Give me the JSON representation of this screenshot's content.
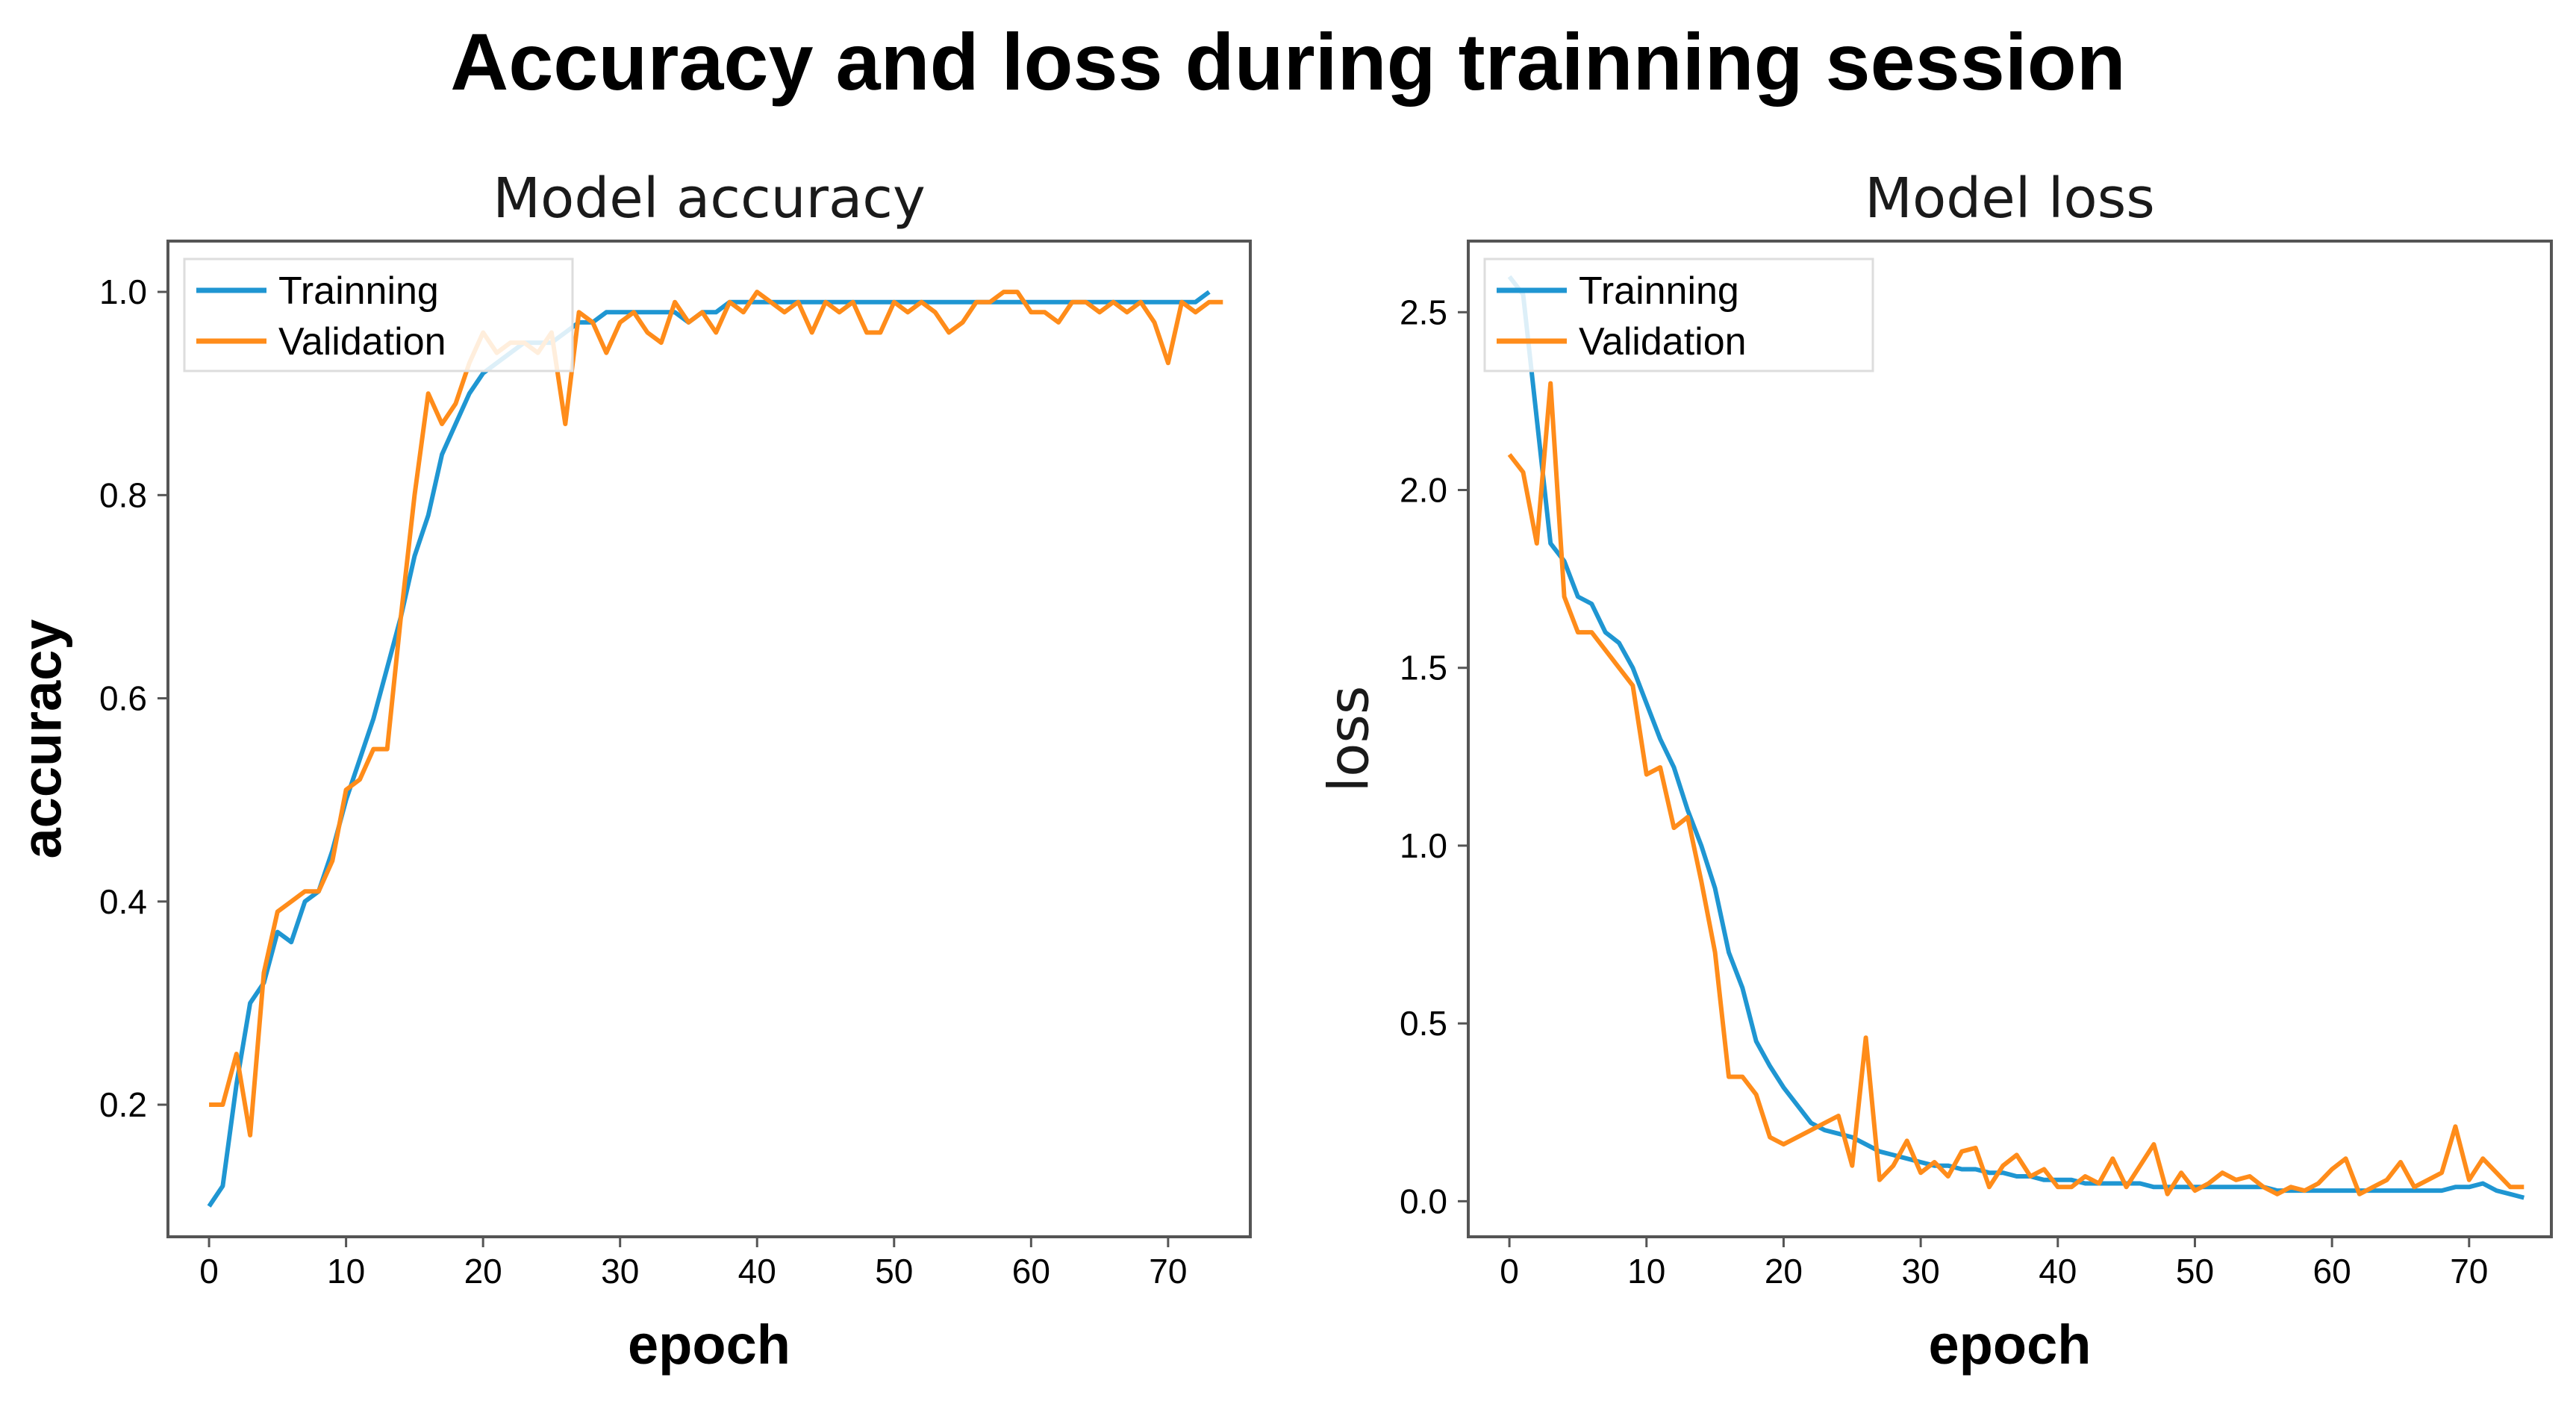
{
  "figure": {
    "title": "Accuracy and loss during trainning session"
  },
  "colors": {
    "training": "#1f96d2",
    "validation": "#ff8c1a",
    "frame": "#555555"
  },
  "chart_data": [
    {
      "type": "line",
      "title": "Model accuracy",
      "xlabel": "epoch",
      "ylabel": "accuracy",
      "xlim": [
        -3,
        76
      ],
      "ylim": [
        0.07,
        1.05
      ],
      "xticks": [
        0,
        10,
        20,
        30,
        40,
        50,
        60,
        70
      ],
      "yticks": [
        0.2,
        0.4,
        0.6,
        0.8,
        1.0
      ],
      "xtick_labels": [
        "0",
        "10",
        "20",
        "30",
        "40",
        "50",
        "60",
        "70"
      ],
      "ytick_labels": [
        "0.2",
        "0.4",
        "0.6",
        "0.8",
        "1.0"
      ],
      "legend": {
        "location": "upper-left",
        "entries": [
          "Trainning",
          "Validation"
        ]
      },
      "series": [
        {
          "name": "Trainning",
          "color": "#1f96d2",
          "values": [
            0.1,
            0.12,
            0.22,
            0.3,
            0.32,
            0.37,
            0.36,
            0.4,
            0.41,
            0.45,
            0.5,
            0.54,
            0.58,
            0.63,
            0.68,
            0.74,
            0.78,
            0.84,
            0.87,
            0.9,
            0.92,
            0.93,
            0.94,
            0.95,
            0.95,
            0.95,
            0.96,
            0.97,
            0.97,
            0.98,
            0.98,
            0.98,
            0.98,
            0.98,
            0.98,
            0.97,
            0.98,
            0.98,
            0.99,
            0.99,
            0.99,
            0.99,
            0.99,
            0.99,
            0.99,
            0.99,
            0.99,
            0.99,
            0.99,
            0.99,
            0.99,
            0.99,
            0.99,
            0.99,
            0.99,
            0.99,
            0.99,
            0.99,
            0.99,
            0.99,
            0.99,
            0.99,
            0.99,
            0.99,
            0.99,
            0.99,
            0.99,
            0.99,
            0.99,
            0.99,
            0.99,
            0.99,
            0.99,
            1.0
          ]
        },
        {
          "name": "Validation",
          "color": "#ff8c1a",
          "values": [
            0.2,
            0.2,
            0.25,
            0.17,
            0.33,
            0.39,
            0.4,
            0.41,
            0.41,
            0.44,
            0.51,
            0.52,
            0.55,
            0.55,
            0.68,
            0.8,
            0.9,
            0.87,
            0.89,
            0.93,
            0.96,
            0.94,
            0.95,
            0.95,
            0.94,
            0.96,
            0.87,
            0.98,
            0.97,
            0.94,
            0.97,
            0.98,
            0.96,
            0.95,
            0.99,
            0.97,
            0.98,
            0.96,
            0.99,
            0.98,
            1.0,
            0.99,
            0.98,
            0.99,
            0.96,
            0.99,
            0.98,
            0.99,
            0.96,
            0.96,
            0.99,
            0.98,
            0.99,
            0.98,
            0.96,
            0.97,
            0.99,
            0.99,
            1.0,
            1.0,
            0.98,
            0.98,
            0.97,
            0.99,
            0.99,
            0.98,
            0.99,
            0.98,
            0.99,
            0.97,
            0.93,
            0.99,
            0.98,
            0.99,
            0.99
          ]
        }
      ]
    },
    {
      "type": "line",
      "title": "Model loss",
      "xlabel": "epoch",
      "ylabel": "loss",
      "xlim": [
        -3,
        76
      ],
      "ylim": [
        -0.1,
        2.7
      ],
      "xticks": [
        0,
        10,
        20,
        30,
        40,
        50,
        60,
        70
      ],
      "yticks": [
        0.0,
        0.5,
        1.0,
        1.5,
        2.0,
        2.5
      ],
      "xtick_labels": [
        "0",
        "10",
        "20",
        "30",
        "40",
        "50",
        "60",
        "70"
      ],
      "ytick_labels": [
        "0.0",
        "0.5",
        "1.0",
        "1.5",
        "2.0",
        "2.5"
      ],
      "legend": {
        "location": "upper-left",
        "entries": [
          "Trainning",
          "Validation"
        ]
      },
      "series": [
        {
          "name": "Trainning",
          "color": "#1f96d2",
          "values": [
            2.6,
            2.55,
            2.2,
            1.85,
            1.8,
            1.7,
            1.68,
            1.6,
            1.57,
            1.5,
            1.4,
            1.3,
            1.22,
            1.1,
            1.0,
            0.88,
            0.7,
            0.6,
            0.45,
            0.38,
            0.32,
            0.27,
            0.22,
            0.2,
            0.19,
            0.18,
            0.16,
            0.14,
            0.13,
            0.12,
            0.11,
            0.1,
            0.1,
            0.09,
            0.09,
            0.08,
            0.08,
            0.07,
            0.07,
            0.06,
            0.06,
            0.06,
            0.05,
            0.05,
            0.05,
            0.05,
            0.05,
            0.04,
            0.04,
            0.04,
            0.04,
            0.04,
            0.04,
            0.04,
            0.04,
            0.04,
            0.03,
            0.03,
            0.03,
            0.03,
            0.03,
            0.03,
            0.03,
            0.03,
            0.03,
            0.03,
            0.03,
            0.03,
            0.03,
            0.04,
            0.04,
            0.05,
            0.03,
            0.02,
            0.01
          ]
        },
        {
          "name": "Validation",
          "color": "#ff8c1a",
          "values": [
            2.1,
            2.05,
            1.85,
            2.3,
            1.7,
            1.6,
            1.6,
            1.55,
            1.5,
            1.45,
            1.2,
            1.22,
            1.05,
            1.08,
            0.9,
            0.7,
            0.35,
            0.35,
            0.3,
            0.18,
            0.16,
            0.18,
            0.2,
            0.22,
            0.24,
            0.1,
            0.46,
            0.06,
            0.1,
            0.17,
            0.08,
            0.11,
            0.07,
            0.14,
            0.15,
            0.04,
            0.1,
            0.13,
            0.07,
            0.09,
            0.04,
            0.04,
            0.07,
            0.05,
            0.12,
            0.04,
            0.1,
            0.16,
            0.02,
            0.08,
            0.03,
            0.05,
            0.08,
            0.06,
            0.07,
            0.04,
            0.02,
            0.04,
            0.03,
            0.05,
            0.09,
            0.12,
            0.02,
            0.04,
            0.06,
            0.11,
            0.04,
            0.06,
            0.08,
            0.21,
            0.06,
            0.12,
            0.08,
            0.04,
            0.04
          ]
        }
      ]
    }
  ]
}
